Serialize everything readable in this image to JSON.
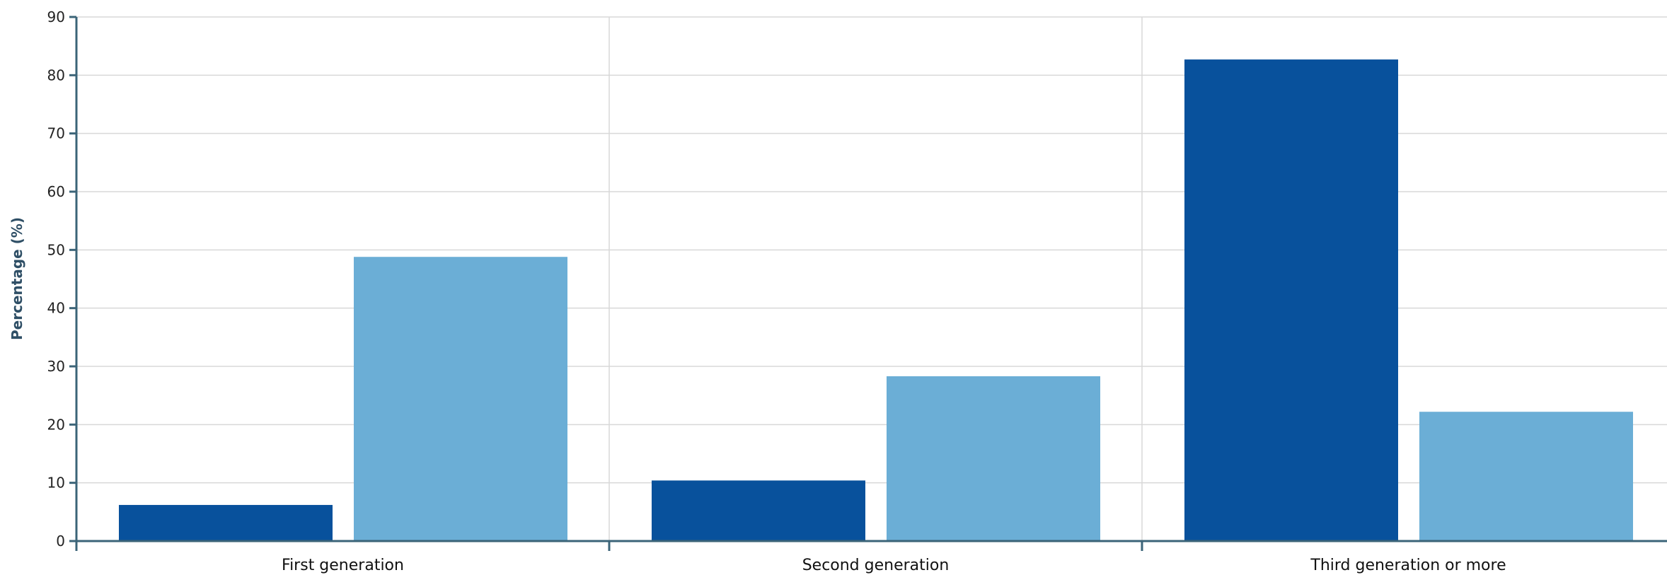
{
  "chart_data": {
    "type": "bar",
    "categories": [
      "First generation",
      "Second generation",
      "Third generation or more"
    ],
    "series": [
      {
        "values": [
          6.2,
          10.4,
          82.7
        ]
      },
      {
        "values": [
          48.8,
          28.3,
          22.2
        ]
      }
    ],
    "colors": [
      "#08519c",
      "#6baed6"
    ],
    "xlabel": "",
    "ylabel": "Percentage (%)",
    "ylim": [
      0,
      90
    ],
    "yticks": [
      0,
      10,
      20,
      30,
      40,
      50,
      60,
      70,
      80,
      90
    ],
    "grid": true,
    "axis_color": "#3b6478",
    "grid_color": "#d8d8d8"
  }
}
